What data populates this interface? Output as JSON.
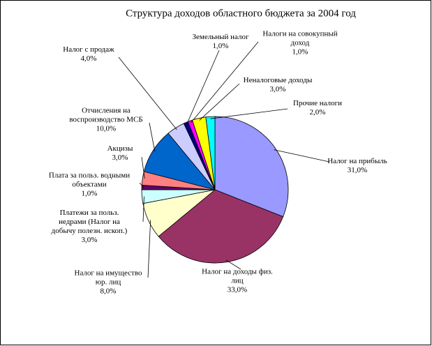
{
  "chart_data": {
    "type": "pie",
    "title": "Структура доходов областного бюджета за  2004 год",
    "categories": [
      "Налог на прибыль",
      "Налог на доходы физ.\nлиц",
      "Налог на имущество\nюр. лиц",
      "Платежи за польз.\nнедрами (Налог на\nдобычу полезн. ископ.)",
      "Плата за польз. водными\nобъектами",
      "Акцизы",
      "Отчисления на\nвоспроизводство МСБ",
      "Налог с продаж",
      "Земельный налог",
      "Налоги на совокупный\nдоход",
      "Неналоговые доходы",
      "Прочие налоги"
    ],
    "values": [
      31,
      33,
      8,
      3,
      1,
      3,
      10,
      4,
      1,
      1,
      3,
      2
    ],
    "value_labels": [
      "31,0%",
      "33,0%",
      "8,0%",
      "3,0%",
      "1,0%",
      "3,0%",
      "10,0%",
      "4,0%",
      "1,0%",
      "1,0%",
      "3,0%",
      "2,0%"
    ],
    "colors": [
      "#9999ff",
      "#993366",
      "#ffffcc",
      "#ccffff",
      "#660066",
      "#ff8080",
      "#0066cc",
      "#ccccff",
      "#000080",
      "#ff00ff",
      "#ffff00",
      "#00ffff"
    ]
  }
}
